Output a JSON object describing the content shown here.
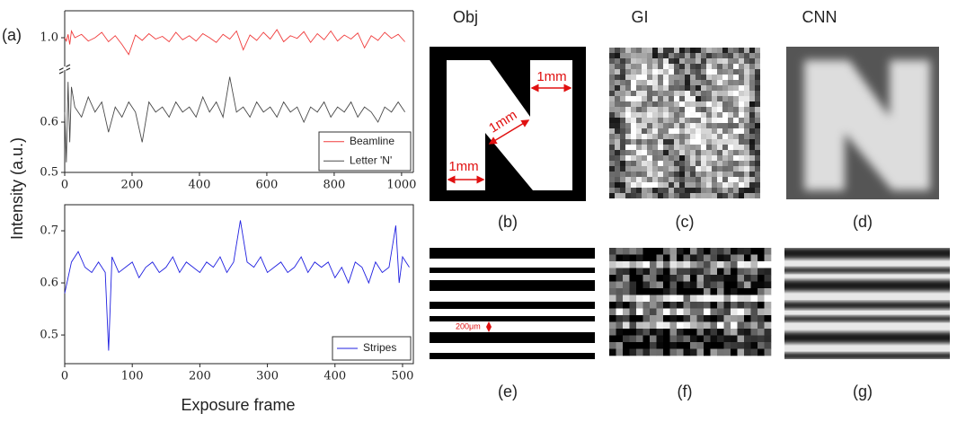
{
  "chart_data": [
    {
      "type": "line",
      "ylabel": "Intensity  (a.u.)",
      "legend": "lower right",
      "xlim": [
        0,
        1035
      ],
      "xticks": [
        0,
        200,
        400,
        600,
        800,
        1000
      ],
      "ylim": [
        0.5,
        0.7
      ],
      "yticks": [
        0.5,
        0.6
      ],
      "y2lim": [
        0.96,
        1.04
      ],
      "y2ticks": [
        {
          "value": 1,
          "label": "1.0"
        }
      ],
      "x": [
        0,
        5,
        10,
        15,
        20,
        30,
        50,
        70,
        90,
        110,
        130,
        150,
        170,
        190,
        210,
        230,
        250,
        270,
        290,
        310,
        330,
        350,
        370,
        390,
        410,
        430,
        450,
        470,
        490,
        510,
        530,
        550,
        570,
        590,
        610,
        630,
        650,
        670,
        690,
        710,
        730,
        750,
        770,
        790,
        810,
        830,
        850,
        870,
        890,
        910,
        930,
        950,
        970,
        990,
        1010
      ],
      "series": [
        {
          "name": "Beamline",
          "color": "#f03c3c",
          "axis": "y2",
          "values": [
            1.0,
            0.995,
            1.005,
            0.99,
            1.01,
            1.0,
            1.005,
            0.995,
            1.0,
            1.008,
            0.994,
            1.003,
            0.99,
            0.975,
            1.004,
            0.996,
            1.006,
            0.998,
            1.002,
            0.994,
            1.008,
            0.997,
            1.003,
            0.995,
            1.006,
            1.0,
            0.993,
            1.005,
            0.998,
            1.01,
            0.982,
            1.004,
            0.996,
            1.008,
            0.998,
            1.012,
            0.994,
            1.003,
            0.999,
            1.009,
            0.993,
            1.006,
            0.997,
            1.01,
            0.995,
            1.004,
            0.998,
            1.007,
            0.985,
            1.003,
            0.996,
            1.008,
            0.999,
            1.005,
            0.994
          ]
        },
        {
          "name": "Letter 'N'",
          "color": "#4a4a4a",
          "values": [
            0.62,
            0.52,
            0.68,
            0.56,
            0.67,
            0.63,
            0.61,
            0.65,
            0.62,
            0.64,
            0.58,
            0.63,
            0.61,
            0.64,
            0.62,
            0.56,
            0.64,
            0.62,
            0.63,
            0.61,
            0.64,
            0.62,
            0.63,
            0.61,
            0.65,
            0.62,
            0.64,
            0.61,
            0.69,
            0.62,
            0.63,
            0.61,
            0.64,
            0.62,
            0.63,
            0.61,
            0.64,
            0.62,
            0.63,
            0.6,
            0.63,
            0.62,
            0.64,
            0.61,
            0.63,
            0.62,
            0.64,
            0.61,
            0.63,
            0.62,
            0.6,
            0.63,
            0.62,
            0.64,
            0.62
          ]
        }
      ]
    },
    {
      "type": "line",
      "xlabel": "Exposure frame",
      "legend": "lower right",
      "xlim": [
        0,
        516
      ],
      "xticks": [
        0,
        100,
        200,
        300,
        400,
        500
      ],
      "ylim": [
        0.445,
        0.75
      ],
      "yticks": [
        0.5,
        0.6,
        0.7
      ],
      "x": [
        0,
        10,
        20,
        30,
        40,
        50,
        60,
        65,
        70,
        80,
        90,
        100,
        110,
        120,
        130,
        140,
        150,
        160,
        170,
        180,
        190,
        200,
        210,
        220,
        230,
        240,
        250,
        260,
        270,
        280,
        290,
        300,
        310,
        320,
        330,
        340,
        350,
        360,
        370,
        380,
        390,
        400,
        410,
        420,
        430,
        440,
        450,
        460,
        470,
        480,
        490,
        495,
        500,
        510
      ],
      "series": [
        {
          "name": "Stripes",
          "color": "#2020e0",
          "values": [
            0.58,
            0.64,
            0.66,
            0.63,
            0.62,
            0.64,
            0.62,
            0.47,
            0.65,
            0.62,
            0.63,
            0.64,
            0.61,
            0.63,
            0.64,
            0.62,
            0.63,
            0.65,
            0.62,
            0.64,
            0.63,
            0.62,
            0.64,
            0.63,
            0.65,
            0.62,
            0.64,
            0.72,
            0.64,
            0.63,
            0.65,
            0.62,
            0.63,
            0.64,
            0.62,
            0.63,
            0.65,
            0.62,
            0.64,
            0.63,
            0.64,
            0.61,
            0.63,
            0.6,
            0.64,
            0.63,
            0.6,
            0.64,
            0.62,
            0.63,
            0.71,
            0.6,
            0.65,
            0.63
          ]
        }
      ]
    }
  ],
  "figure": {
    "panel_a": "(a)",
    "column_titles": [
      "Obj",
      "GI",
      "CNN"
    ],
    "panel_labels": [
      "(b)",
      "(c)",
      "(d)",
      "(e)",
      "(f)",
      "(g)"
    ],
    "obj_annotations": [
      "1mm",
      "1mm",
      "1mm"
    ],
    "stripe_annotation": "200μm"
  }
}
